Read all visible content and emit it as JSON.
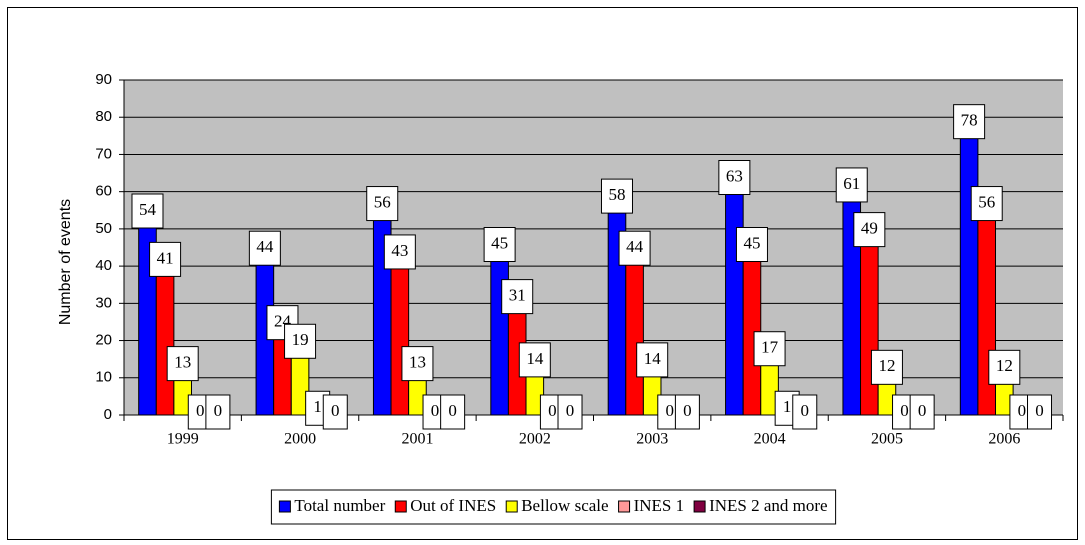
{
  "chart_data": {
    "type": "bar",
    "y_label": "Number of events",
    "categories": [
      "1999",
      "2000",
      "2001",
      "2002",
      "2003",
      "2004",
      "2005",
      "2006"
    ],
    "series": [
      {
        "name": "Total number",
        "color": "#0000ff",
        "values": [
          54,
          44,
          56,
          45,
          58,
          63,
          61,
          78
        ]
      },
      {
        "name": "Out of INES",
        "color": "#ff0000",
        "values": [
          41,
          24,
          43,
          31,
          44,
          45,
          49,
          56
        ]
      },
      {
        "name": "Bellow scale",
        "color": "#ffff00",
        "values": [
          13,
          19,
          13,
          14,
          14,
          17,
          12,
          12
        ]
      },
      {
        "name": "INES 1",
        "color": "#ff9999",
        "values": [
          0,
          1,
          0,
          0,
          0,
          1,
          0,
          0
        ]
      },
      {
        "name": "INES 2 and more",
        "color": "#800040",
        "values": [
          0,
          0,
          0,
          0,
          0,
          0,
          0,
          0
        ]
      }
    ],
    "ylim": [
      0,
      90
    ],
    "yticks": [
      0,
      10,
      20,
      30,
      40,
      50,
      60,
      70,
      80,
      90
    ],
    "grid": true,
    "plot_background": "#c0c0c0",
    "legend": "bottom"
  }
}
